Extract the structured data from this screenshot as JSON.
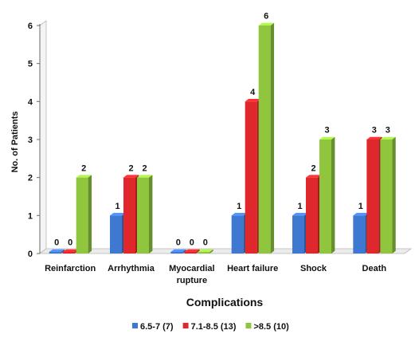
{
  "chart_data": {
    "type": "bar",
    "title": "",
    "xlabel": "Complications",
    "ylabel": "No. of Patients",
    "ylim": [
      0,
      6
    ],
    "yticks": [
      0,
      1,
      2,
      3,
      4,
      5,
      6
    ],
    "categories": [
      [
        "Reinfarction"
      ],
      [
        "Arrhythmia"
      ],
      [
        "Myocardial",
        "rupture"
      ],
      [
        "Heart failure"
      ],
      [
        "Shock"
      ],
      [
        "Death"
      ]
    ],
    "series": [
      {
        "name": "6.5-7 (7)",
        "color": "#3f78d1",
        "values": [
          0,
          1,
          0,
          1,
          1,
          1
        ]
      },
      {
        "name": "7.1-8.5 (13)",
        "color": "#e0282c",
        "values": [
          0,
          2,
          0,
          4,
          2,
          3
        ]
      },
      {
        "name": ">8.5 (10)",
        "color": "#8fc63e",
        "values": [
          2,
          2,
          0,
          6,
          3,
          3
        ]
      }
    ],
    "legend_position": "bottom",
    "grid": false,
    "style": "3d-bars"
  }
}
